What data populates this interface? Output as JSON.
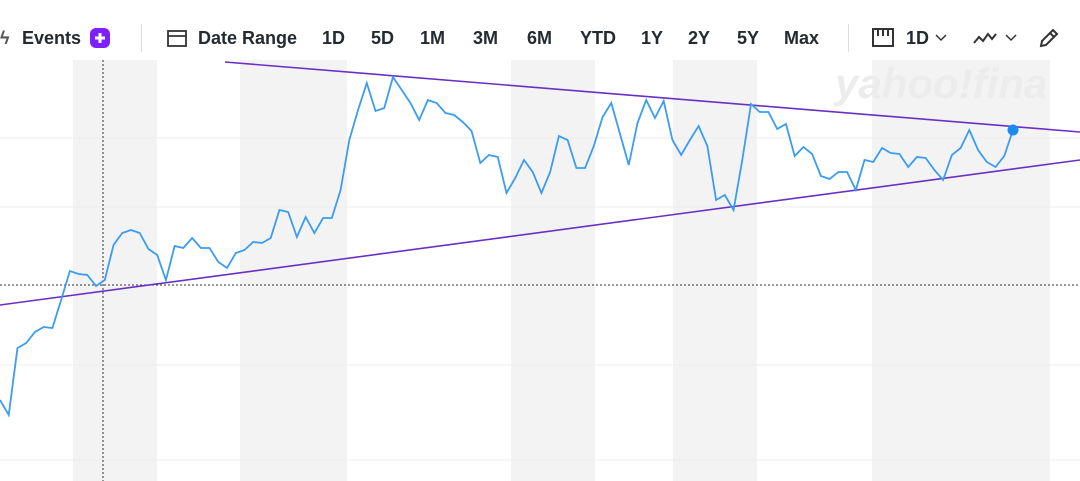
{
  "toolbar": {
    "events": "Events",
    "date_range": "Date Range",
    "ranges": [
      "1D",
      "5D",
      "1M",
      "3M",
      "6M",
      "YTD",
      "1Y",
      "2Y",
      "5Y",
      "Max"
    ],
    "interval": "1D"
  },
  "watermark": "yahoo!fina",
  "chart_data": {
    "type": "line",
    "series": [
      {
        "color": "#3b9cf2",
        "values": [
          20,
          16.25,
          33,
          34.25,
          37,
          38.25,
          38,
          45,
          52.25,
          51.5,
          51.25,
          48.5,
          50,
          58.75,
          61.75,
          62.5,
          61.75,
          57.75,
          56.25,
          50,
          58.5,
          58,
          60.5,
          58,
          58,
          54.5,
          53,
          56.75,
          57.5,
          59.5,
          59.25,
          60.5,
          67.5,
          67,
          60.75,
          65.75,
          61.75,
          65.5,
          65.5,
          72.5,
          85,
          92.5,
          99.25,
          92.25,
          93,
          100.75,
          97.5,
          94.25,
          90,
          95,
          94.25,
          91.75,
          91.25,
          89.5,
          87.25,
          79.25,
          81.25,
          80.75,
          71.75,
          75.5,
          80,
          77,
          71.75,
          77,
          86,
          85,
          78,
          78,
          83.5,
          90.75,
          94.25,
          86.5,
          78.75,
          89.25,
          95,
          90.5,
          94.75,
          85,
          81.25,
          85,
          88.5,
          83.5,
          70,
          71.25,
          67.5,
          80,
          94,
          92,
          92,
          87.75,
          89,
          81,
          83.25,
          81.5,
          76,
          75.25,
          77,
          77,
          72.5,
          80,
          79.5,
          83,
          81.75,
          81.5,
          78.25,
          80.75,
          80.5,
          77.5,
          75,
          81.25,
          83,
          87.5,
          82.5,
          79.5,
          78.25,
          81,
          87.5
        ]
      }
    ],
    "ylim": [
      0,
      120
    ]
  }
}
